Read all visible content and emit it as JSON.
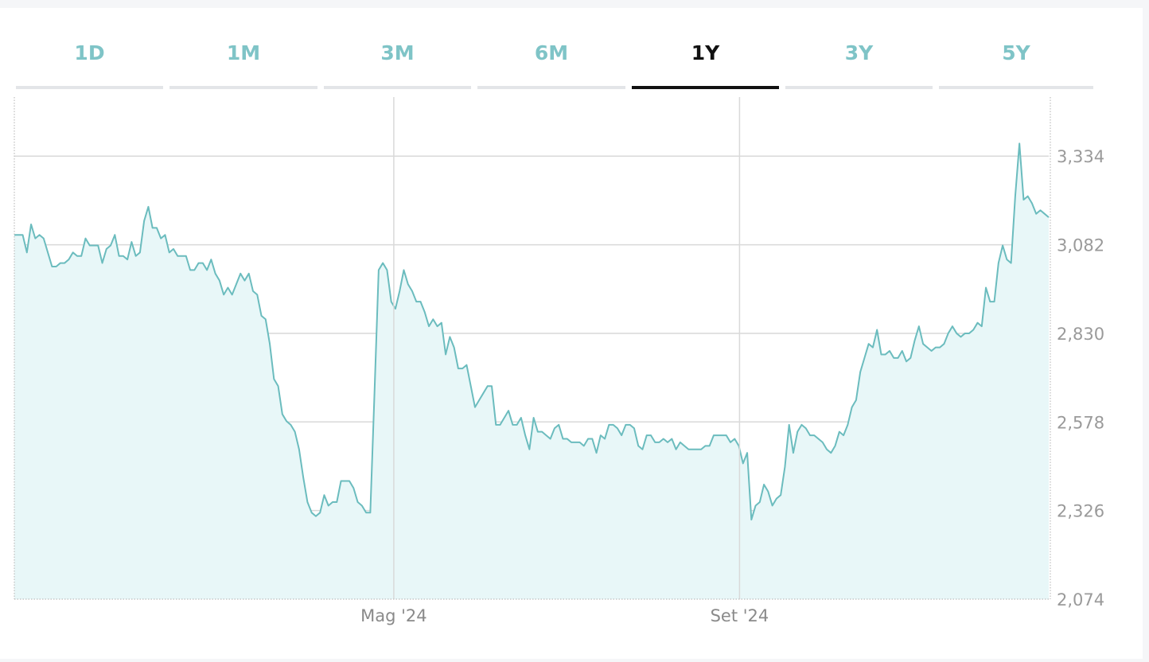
{
  "tabs": [
    {
      "label": "1D",
      "active": false
    },
    {
      "label": "1M",
      "active": false
    },
    {
      "label": "3M",
      "active": false
    },
    {
      "label": "6M",
      "active": false
    },
    {
      "label": "1Y",
      "active": true
    },
    {
      "label": "3Y",
      "active": false
    },
    {
      "label": "5Y",
      "active": false
    }
  ],
  "colors": {
    "line": "#6bbcbe",
    "fill": "#e8f7f8",
    "grid": "#d9d9d9",
    "tick_text": "#9a9a9a",
    "active_tab": "#111111",
    "inactive_tab": "#7fc4c7"
  },
  "chart_data": {
    "type": "area",
    "title": "",
    "xlabel": "",
    "ylabel": "",
    "ylim": [
      2074,
      3502
    ],
    "y_ticks": [
      "2,074",
      "2,326",
      "2,578",
      "2,830",
      "3,082",
      "3,334"
    ],
    "x_ticks": [
      "Mag '24",
      "Set '24"
    ],
    "x_range": [
      "2023-12-18",
      "2024-12-20"
    ],
    "x_tick_dates": [
      "2024-05-01",
      "2024-09-01"
    ],
    "grid": true,
    "series": [
      {
        "values": [
          3110,
          3110,
          3110,
          3060,
          3140,
          3100,
          3110,
          3100,
          3060,
          3020,
          3020,
          3030,
          3030,
          3040,
          3060,
          3050,
          3050,
          3100,
          3080,
          3080,
          3080,
          3030,
          3070,
          3080,
          3110,
          3050,
          3050,
          3040,
          3090,
          3050,
          3060,
          3150,
          3190,
          3130,
          3130,
          3100,
          3110,
          3060,
          3070,
          3050,
          3050,
          3050,
          3010,
          3010,
          3030,
          3030,
          3010,
          3040,
          3000,
          2980,
          2940,
          2960,
          2940,
          2970,
          3000,
          2980,
          3000,
          2950,
          2940,
          2880,
          2870,
          2800,
          2700,
          2680,
          2600,
          2580,
          2570,
          2550,
          2500,
          2420,
          2350,
          2320,
          2310,
          2320,
          2370,
          2340,
          2350,
          2350,
          2410,
          2410,
          2410,
          2390,
          2350,
          2340,
          2320,
          2320,
          2660,
          3010,
          3030,
          3010,
          2920,
          2900,
          2950,
          3010,
          2970,
          2950,
          2920,
          2920,
          2890,
          2850,
          2870,
          2850,
          2860,
          2770,
          2820,
          2790,
          2730,
          2730,
          2740,
          2680,
          2620,
          2640,
          2660,
          2680,
          2680,
          2570,
          2570,
          2590,
          2610,
          2570,
          2570,
          2590,
          2540,
          2500,
          2590,
          2550,
          2550,
          2540,
          2530,
          2560,
          2570,
          2530,
          2530,
          2520,
          2520,
          2520,
          2510,
          2530,
          2530,
          2490,
          2540,
          2530,
          2570,
          2570,
          2560,
          2540,
          2570,
          2570,
          2560,
          2510,
          2500,
          2540,
          2540,
          2520,
          2520,
          2530,
          2520,
          2530,
          2500,
          2520,
          2510,
          2500,
          2500,
          2500,
          2500,
          2510,
          2510,
          2540,
          2540,
          2540,
          2540,
          2520,
          2530,
          2510,
          2460,
          2490,
          2300,
          2340,
          2350,
          2400,
          2380,
          2340,
          2360,
          2370,
          2450,
          2570,
          2490,
          2550,
          2570,
          2560,
          2540,
          2540,
          2530,
          2520,
          2500,
          2490,
          2510,
          2550,
          2540,
          2570,
          2620,
          2640,
          2720,
          2760,
          2800,
          2790,
          2840,
          2770,
          2770,
          2780,
          2760,
          2760,
          2780,
          2750,
          2760,
          2810,
          2850,
          2800,
          2790,
          2780,
          2790,
          2790,
          2800,
          2830,
          2850,
          2830,
          2820,
          2830,
          2830,
          2840,
          2860,
          2850,
          2960,
          2920,
          2920,
          3030,
          3080,
          3040,
          3030,
          3220,
          3370,
          3210,
          3220,
          3200,
          3170,
          3180,
          3170,
          3160
        ]
      }
    ]
  }
}
